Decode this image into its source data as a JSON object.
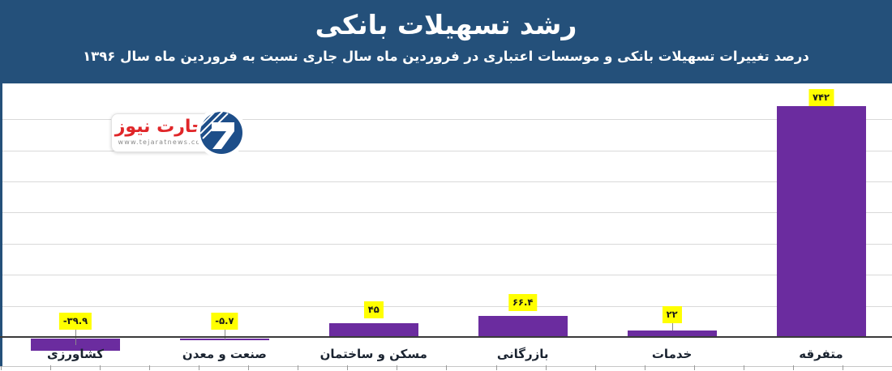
{
  "header": {
    "background_color": "#24507A",
    "text_color": "#FFFFFF"
  },
  "branding": {
    "logo_text": "تجارت نیوز",
    "logo_url": "www.tejaratnews.com",
    "logo_text_color": "#E02629",
    "emblem_color": "#1D4E89"
  },
  "chart_data": {
    "type": "bar",
    "title": "رشد تسهیلات بانکی",
    "subtitle": "درصد تغییرات تسهیلات بانکی و موسسات اعتباری در فروردین ماه سال جاری نسبت به فروردین ماه سال ۱۳۹۶",
    "categories": [
      "کشاورزی",
      "صنعت و معدن",
      "مسکن و ساختمان",
      "بازرگانی",
      "خدمات",
      "متفرقه"
    ],
    "values": [
      -39.9,
      -5.7,
      45,
      66.4,
      22,
      742
    ],
    "value_labels": [
      "-۳۹.۹",
      "-۵.۷",
      "۴۵",
      "۶۶.۴",
      "۲۲",
      "۷۴۲"
    ],
    "xlabel": "",
    "ylabel": "",
    "ylim": [
      -60,
      800
    ],
    "gridline_step": 100,
    "grid_on": true,
    "legend": "none",
    "bar_color": "#6B2C9F",
    "value_label_bg": "#FFFF00",
    "value_label_color": "#1A1A1A",
    "category_label_color": "#1A2330",
    "grid_color": "#D9D9D9",
    "axis_color": "#3A3A3A"
  }
}
